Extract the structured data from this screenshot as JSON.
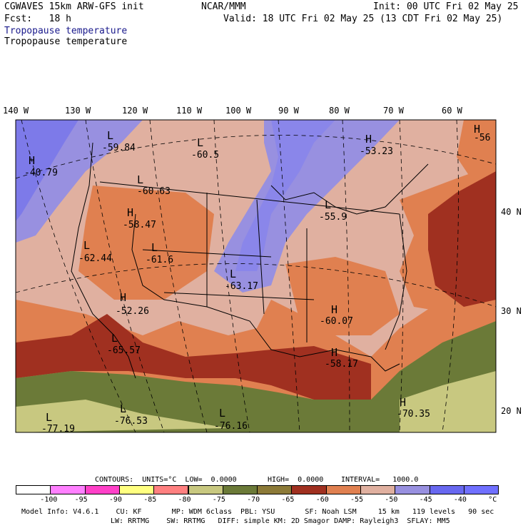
{
  "header": {
    "line1_left": "CGWAVES 15km ARW-GFS init",
    "line1_center": "NCAR/MMM",
    "line1_right": "Init: 00 UTC Fri 02 May 25",
    "line2_left": "Fcst:   18 h",
    "line2_right": "Valid: 18 UTC Fri 02 May 25 (13 CDT Fri 02 May 25)",
    "line3": "Tropopause temperature",
    "line4": "Tropopause temperature"
  },
  "lon_labels": [
    "140 W",
    "130 W",
    "120 W",
    "110 W",
    "100 W",
    "90 W",
    "80 W",
    "70 W",
    "60 W"
  ],
  "lat_labels": [
    "40 N",
    "30 N",
    "20 N"
  ],
  "centers": [
    {
      "type": "H",
      "value": "-40.79"
    },
    {
      "type": "L",
      "value": "-59.84"
    },
    {
      "type": "L",
      "value": "-60.5"
    },
    {
      "type": "H",
      "value": "-53.23"
    },
    {
      "type": "H",
      "value": "-56"
    },
    {
      "type": "L",
      "value": "-60.63"
    },
    {
      "type": "H",
      "value": "-58.47"
    },
    {
      "type": "L",
      "value": "-62.44"
    },
    {
      "type": "L",
      "value": "-61.6"
    },
    {
      "type": "L",
      "value": "-63.17"
    },
    {
      "type": "L",
      "value": "-55.9"
    },
    {
      "type": "H",
      "value": "-52.26"
    },
    {
      "type": "H",
      "value": "-60.07"
    },
    {
      "type": "L",
      "value": "-65.57"
    },
    {
      "type": "H",
      "value": "-58.17"
    },
    {
      "type": "L",
      "value": "-76.53"
    },
    {
      "type": "L",
      "value": "-76.16"
    },
    {
      "type": "L",
      "value": "-77.19"
    },
    {
      "type": "H",
      "value": "-70.35"
    }
  ],
  "contours": {
    "units_line": "CONTOURS:  UNITS=°C  LOW=  0.0000",
    "high_text": "HIGH=  0.0000",
    "interval_text": "INTERVAL=   1000.0"
  },
  "colorbar": {
    "colors": [
      "#ffffff",
      "#ff80ff",
      "#ff40c8",
      "#ffff80",
      "#ff8080",
      "#c8c880",
      "#6b7a38",
      "#8c7a38",
      "#a03020",
      "#e08050",
      "#e0b0a0",
      "#9890e0",
      "#6868f0",
      "#7070ff"
    ],
    "labels": [
      "-100",
      "-95",
      "-90",
      "-85",
      "-80",
      "-75",
      "-70",
      "-65",
      "-60",
      "-55",
      "-50",
      "-45",
      "-40",
      "°C"
    ]
  },
  "footer": {
    "line1": "Model Info: V4.6.1    CU: KF       MP: WDM 6class  PBL: YSU       SF: Noah LSM     15 km   119 levels   90 sec",
    "line2": "LW: RRTMG    SW: RRTMG   DIFF: simple KM: 2D Smagor DAMP: Rayleigh3  SFLAY: MM5"
  }
}
